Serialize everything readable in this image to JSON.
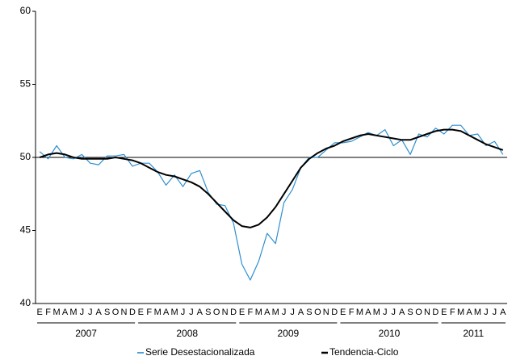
{
  "chart_data": {
    "type": "line",
    "categories": [
      "E",
      "F",
      "M",
      "A",
      "M",
      "J",
      "J",
      "A",
      "S",
      "O",
      "N",
      "D",
      "E",
      "F",
      "M",
      "A",
      "M",
      "J",
      "J",
      "A",
      "S",
      "O",
      "N",
      "D",
      "E",
      "F",
      "M",
      "A",
      "M",
      "J",
      "J",
      "A",
      "S",
      "O",
      "N",
      "D",
      "E",
      "F",
      "M",
      "A",
      "M",
      "J",
      "J",
      "A",
      "S",
      "O",
      "N",
      "D",
      "E",
      "F",
      "M",
      "A",
      "M",
      "J",
      "J",
      "A"
    ],
    "groups": [
      {
        "label": "2007",
        "count": 12
      },
      {
        "label": "2008",
        "count": 12
      },
      {
        "label": "2009",
        "count": 12
      },
      {
        "label": "2010",
        "count": 12
      },
      {
        "label": "2011",
        "count": 8
      }
    ],
    "series": [
      {
        "name": "Serie Desestacionalizada",
        "color": "#2e8fd0",
        "width": 1.2,
        "values": [
          50.4,
          49.9,
          50.8,
          50.0,
          49.9,
          50.2,
          49.6,
          49.5,
          50.1,
          50.1,
          50.2,
          49.4,
          49.6,
          49.6,
          49.0,
          48.1,
          48.8,
          48.0,
          48.9,
          49.1,
          47.6,
          46.8,
          46.7,
          45.5,
          42.7,
          41.6,
          42.9,
          44.8,
          44.1,
          46.9,
          47.8,
          49.3,
          50.0,
          50.0,
          50.5,
          51.0,
          51.0,
          51.1,
          51.4,
          51.7,
          51.5,
          51.9,
          50.8,
          51.2,
          50.2,
          51.6,
          51.4,
          52.0,
          51.6,
          52.2,
          52.2,
          51.5,
          51.6,
          50.8,
          51.1,
          50.2
        ]
      },
      {
        "name": "Tendencia-Ciclo",
        "color": "#000000",
        "width": 2,
        "values": [
          50.0,
          50.2,
          50.3,
          50.2,
          50.0,
          49.9,
          49.9,
          49.9,
          49.9,
          50.0,
          49.9,
          49.8,
          49.6,
          49.3,
          49.0,
          48.8,
          48.7,
          48.5,
          48.3,
          48.0,
          47.5,
          46.9,
          46.3,
          45.7,
          45.3,
          45.2,
          45.4,
          45.9,
          46.6,
          47.5,
          48.4,
          49.3,
          49.9,
          50.3,
          50.6,
          50.8,
          51.1,
          51.3,
          51.5,
          51.6,
          51.5,
          51.4,
          51.3,
          51.2,
          51.2,
          51.4,
          51.6,
          51.8,
          51.9,
          51.9,
          51.8,
          51.5,
          51.2,
          50.9,
          50.7,
          50.5
        ]
      }
    ],
    "ylim": [
      40,
      60
    ],
    "yticks": [
      40,
      45,
      50,
      55,
      60
    ],
    "hline": 50,
    "legend": "bottom"
  }
}
